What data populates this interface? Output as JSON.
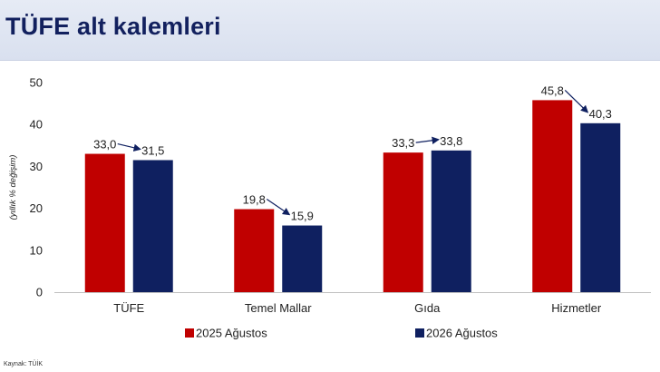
{
  "header": {
    "title": "TÜFE alt kalemleri"
  },
  "source": "Kaynak: TÜİK",
  "colors": {
    "series1": "#c00000",
    "series2": "#0f2060",
    "header_bg": "#dde3f0",
    "title": "#12205e"
  },
  "chart_data": {
    "type": "bar",
    "categories": [
      "TÜFE",
      "Temel Mallar",
      "Gıda",
      "Hizmetler"
    ],
    "series": [
      {
        "name": "2025 Ağustos",
        "values": [
          33.0,
          19.8,
          33.3,
          45.8
        ],
        "labels": [
          "33,0",
          "19,8",
          "33,3",
          "45,8"
        ],
        "color": "#c00000"
      },
      {
        "name": "2026 Ağustos",
        "values": [
          31.5,
          15.9,
          33.8,
          40.3
        ],
        "labels": [
          "31,5",
          "15,9",
          "33,8",
          "40,3"
        ],
        "color": "#0f2060"
      }
    ],
    "ylabel": "(yıllık % değişim)",
    "ylim": [
      0,
      50
    ],
    "yticks": [
      0,
      10,
      20,
      30,
      40,
      50
    ],
    "grid": false,
    "legend": "bottom",
    "annotations": "arrows from each 2025 value to the matching 2026 value"
  }
}
